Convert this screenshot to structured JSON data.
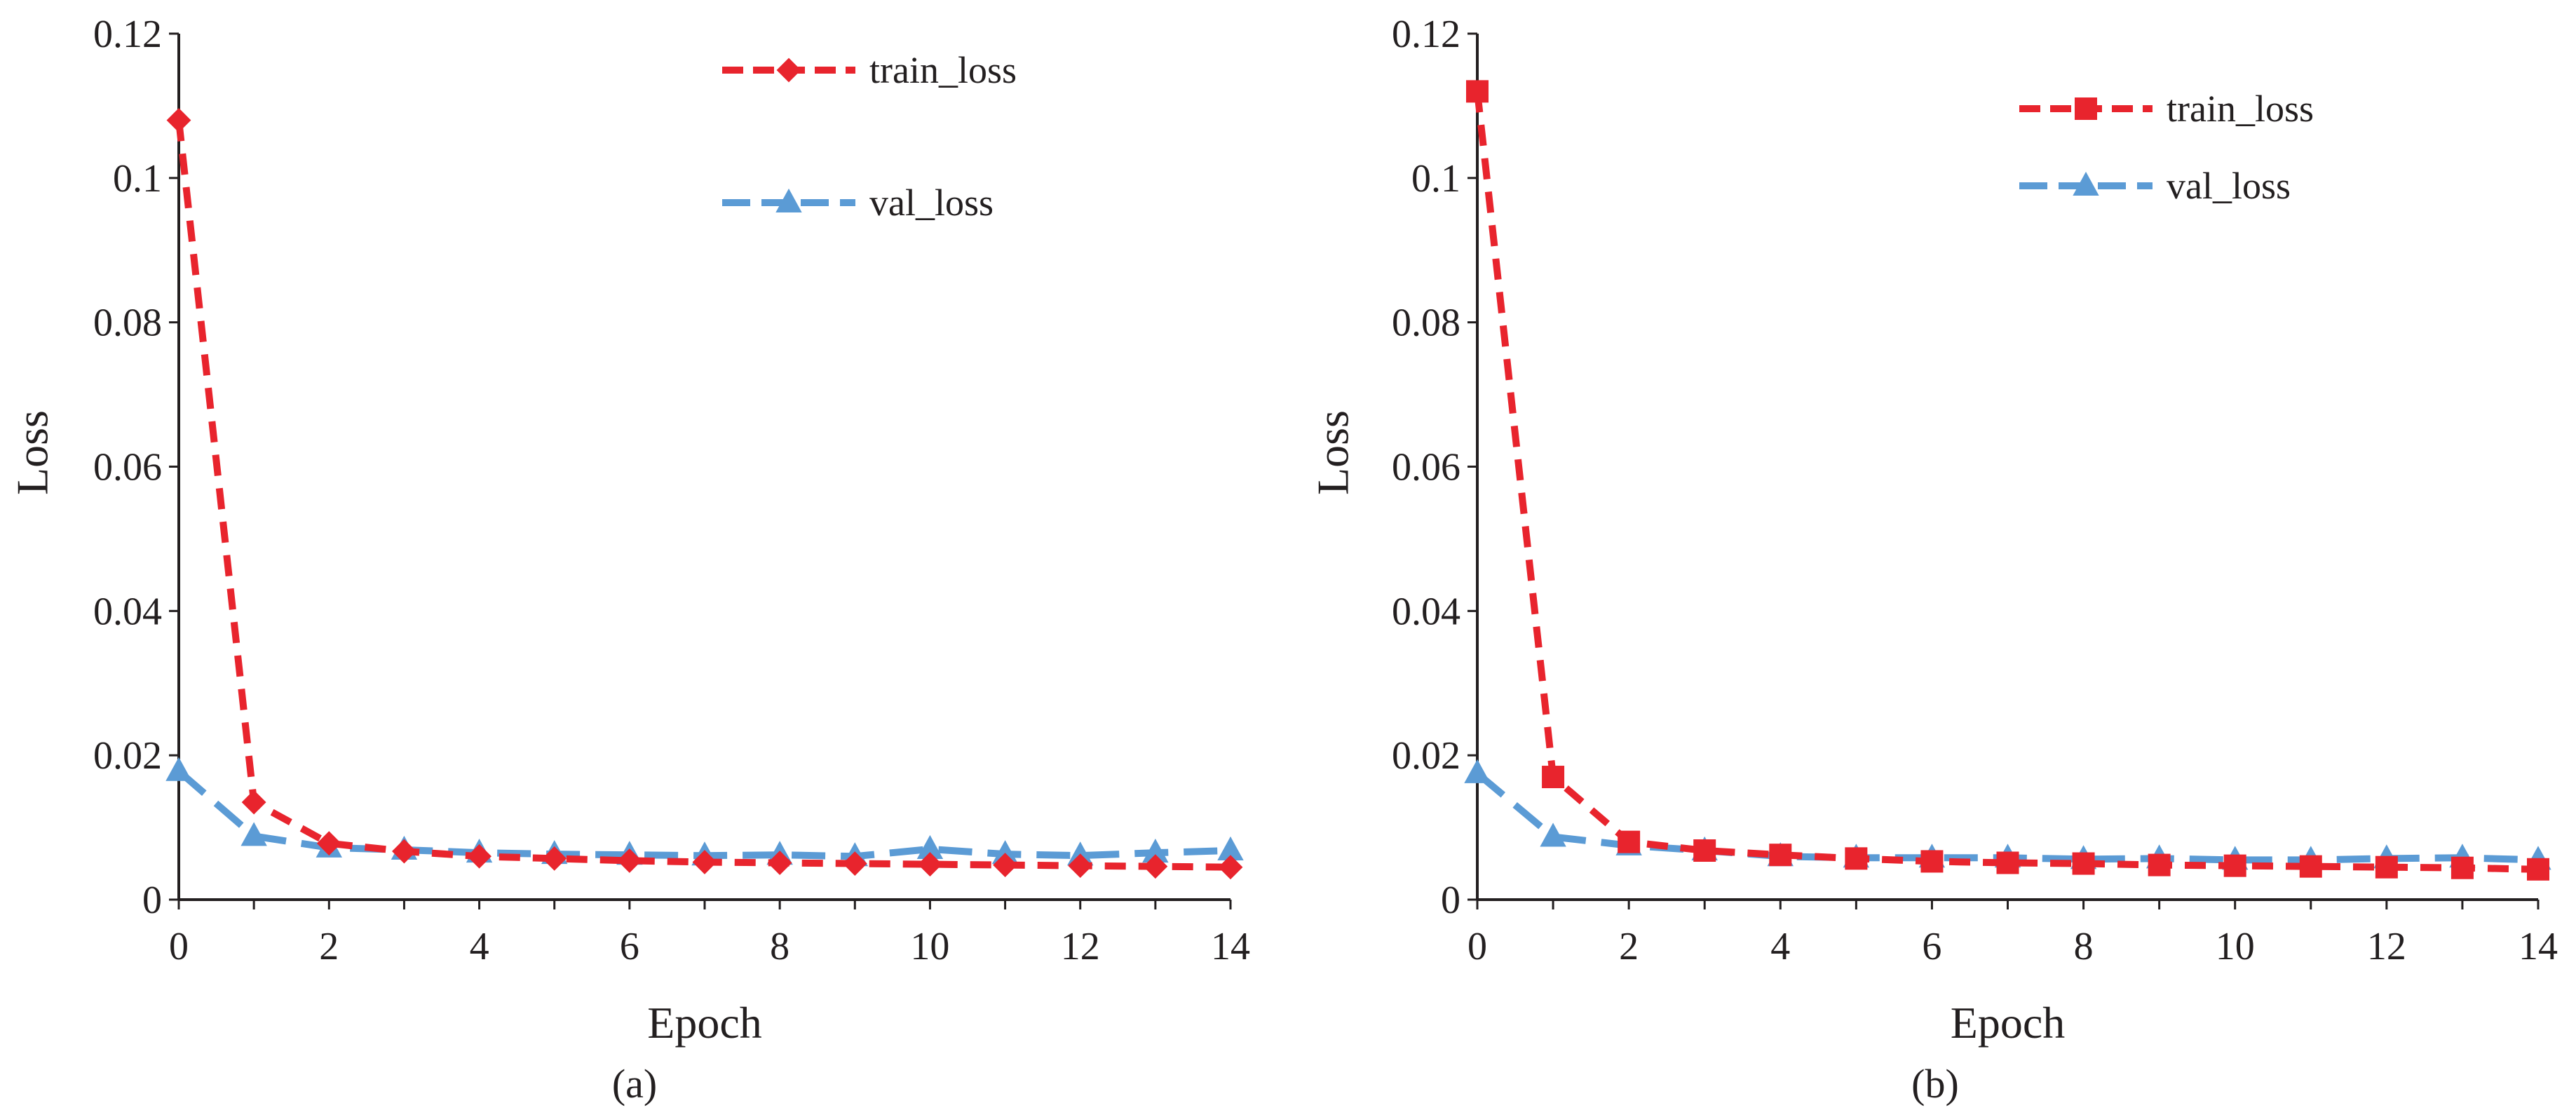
{
  "chart_data": [
    {
      "type": "line",
      "panel_label": "(a)",
      "xlabel": "Epoch",
      "ylabel": "Loss",
      "xlim": [
        0,
        14
      ],
      "ylim": [
        0,
        0.12
      ],
      "x_ticks": [
        0,
        2,
        4,
        6,
        8,
        10,
        12,
        14
      ],
      "y_ticks": [
        0,
        0.02,
        0.04,
        0.06,
        0.08,
        0.1,
        0.12
      ],
      "y_tick_labels": [
        "0",
        "0.02",
        "0.04",
        "0.06",
        "0.08",
        "0.1",
        "0.12"
      ],
      "legend_position": "top-right",
      "grid": false,
      "x": [
        0,
        1,
        2,
        3,
        4,
        5,
        6,
        7,
        8,
        9,
        10,
        11,
        12,
        13,
        14
      ],
      "series": [
        {
          "name": "train_loss",
          "color": "#e8242d",
          "marker": "diamond",
          "values": [
            0.108,
            0.0135,
            0.0078,
            0.0067,
            0.006,
            0.0057,
            0.0054,
            0.0052,
            0.0051,
            0.005,
            0.0049,
            0.0048,
            0.0047,
            0.0046,
            0.0045
          ]
        },
        {
          "name": "val_loss",
          "color": "#5b9bd5",
          "marker": "triangle",
          "values": [
            0.0178,
            0.0088,
            0.0072,
            0.0069,
            0.0065,
            0.0063,
            0.0062,
            0.0061,
            0.0062,
            0.006,
            0.007,
            0.0063,
            0.0061,
            0.0065,
            0.0068
          ]
        }
      ]
    },
    {
      "type": "line",
      "panel_label": "(b)",
      "xlabel": "Epoch",
      "ylabel": "Loss",
      "xlim": [
        0,
        14
      ],
      "ylim": [
        0,
        0.12
      ],
      "x_ticks": [
        0,
        2,
        4,
        6,
        8,
        10,
        12,
        14
      ],
      "y_ticks": [
        0,
        0.02,
        0.04,
        0.06,
        0.08,
        0.1,
        0.12
      ],
      "y_tick_labels": [
        "0",
        "0.02",
        "0.04",
        "0.06",
        "0.08",
        "0.1",
        "0.12"
      ],
      "legend_position": "top-right",
      "grid": false,
      "x": [
        0,
        1,
        2,
        3,
        4,
        5,
        6,
        7,
        8,
        9,
        10,
        11,
        12,
        13,
        14
      ],
      "series": [
        {
          "name": "train_loss",
          "color": "#e8242d",
          "marker": "square",
          "values": [
            0.112,
            0.017,
            0.008,
            0.0068,
            0.0062,
            0.0057,
            0.0053,
            0.0051,
            0.005,
            0.0048,
            0.0047,
            0.0046,
            0.0045,
            0.0044,
            0.0042
          ]
        },
        {
          "name": "val_loss",
          "color": "#5b9bd5",
          "marker": "triangle",
          "values": [
            0.0175,
            0.0087,
            0.0075,
            0.0068,
            0.006,
            0.0058,
            0.0058,
            0.0058,
            0.0056,
            0.0057,
            0.0055,
            0.0055,
            0.0057,
            0.0058,
            0.0055
          ]
        }
      ]
    }
  ]
}
